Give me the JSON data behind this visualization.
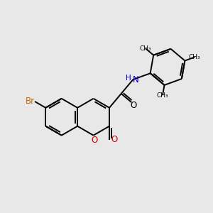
{
  "bg_color": "#e8e8e8",
  "bond_width": 1.4,
  "font_size": 8.5,
  "figsize": [
    3.0,
    3.0
  ],
  "dpi": 100,
  "bond_color": "#000000",
  "br_color": "#cc6600",
  "o_color": "#cc0000",
  "n_color": "#0000cc",
  "xlim": [
    0,
    10
  ],
  "ylim": [
    0,
    10
  ]
}
